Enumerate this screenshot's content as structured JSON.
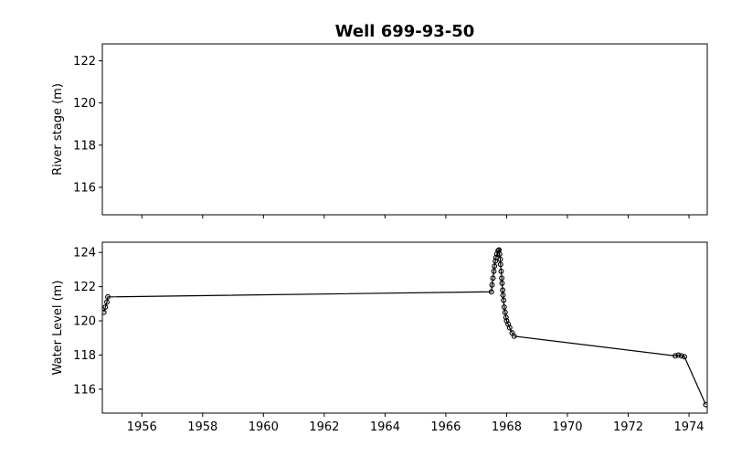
{
  "chart_data": [
    {
      "type": "line",
      "title": "Well 699-93-50",
      "ylabel": "River stage (m)",
      "xlim": [
        1954.7,
        1974.6
      ],
      "ylim": [
        114.7,
        122.8
      ],
      "yticks": [
        116,
        118,
        120,
        122
      ],
      "xticks": [
        1956,
        1958,
        1960,
        1962,
        1964,
        1966,
        1968,
        1970,
        1972,
        1974
      ],
      "x_ticklabels_visible": false,
      "series": []
    },
    {
      "type": "line",
      "ylabel": "Water Level (m)",
      "xlim": [
        1954.7,
        1974.6
      ],
      "ylim": [
        114.6,
        124.6
      ],
      "yticks": [
        116,
        118,
        120,
        122,
        124
      ],
      "xticks": [
        1956,
        1958,
        1960,
        1962,
        1964,
        1966,
        1968,
        1970,
        1972,
        1974
      ],
      "series": [
        {
          "color": "#000000",
          "marker": "open-circle",
          "points": [
            [
              1954.75,
              120.5
            ],
            [
              1954.8,
              120.8
            ],
            [
              1954.85,
              121.1
            ],
            [
              1954.88,
              121.4
            ],
            [
              1967.5,
              121.7
            ],
            [
              1967.52,
              122.1
            ],
            [
              1967.55,
              122.5
            ],
            [
              1967.58,
              122.9
            ],
            [
              1967.6,
              123.2
            ],
            [
              1967.63,
              123.5
            ],
            [
              1967.65,
              123.7
            ],
            [
              1967.68,
              123.9
            ],
            [
              1967.72,
              124.1
            ],
            [
              1967.75,
              124.15
            ],
            [
              1967.77,
              123.9
            ],
            [
              1967.79,
              123.6
            ],
            [
              1967.8,
              123.3
            ],
            [
              1967.82,
              122.9
            ],
            [
              1967.84,
              122.5
            ],
            [
              1967.85,
              122.2
            ],
            [
              1967.87,
              121.8
            ],
            [
              1967.88,
              121.5
            ],
            [
              1967.9,
              121.2
            ],
            [
              1967.92,
              120.8
            ],
            [
              1967.95,
              120.5
            ],
            [
              1967.98,
              120.2
            ],
            [
              1968.0,
              120.0
            ],
            [
              1968.05,
              119.8
            ],
            [
              1968.1,
              119.6
            ],
            [
              1968.18,
              119.3
            ],
            [
              1968.25,
              119.1
            ],
            [
              1973.55,
              117.95
            ],
            [
              1973.65,
              118.0
            ],
            [
              1973.75,
              117.95
            ],
            [
              1973.85,
              117.9
            ],
            [
              1974.55,
              115.1
            ]
          ]
        }
      ]
    }
  ]
}
